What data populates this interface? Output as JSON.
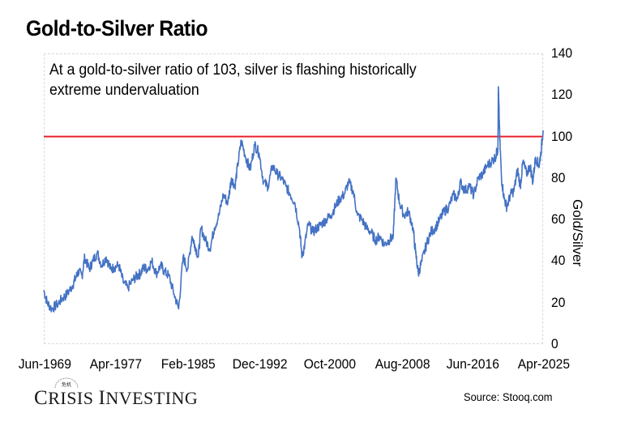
{
  "chart_data": {
    "type": "line",
    "title": "Gold-to-Silver Ratio",
    "annotation": "At a gold-to-silver ratio of 103, silver is flashing historically extreme undervaluation",
    "xlabel": "",
    "ylabel": "Gold/Silver",
    "ylim": [
      0,
      140
    ],
    "yticks": [
      "0",
      "20",
      "40",
      "60",
      "80",
      "100",
      "120",
      "140"
    ],
    "y_axis_position": "right",
    "xlim": [
      1969.42,
      2025.25
    ],
    "xticks": [
      "Jun-1969",
      "Apr-1977",
      "Feb-1985",
      "Dec-1992",
      "Oct-2000",
      "Aug-2008",
      "Jun-2016",
      "Apr-2025"
    ],
    "grid": false,
    "legend": "none",
    "reference_line": {
      "value": 100,
      "color": "#e8212a",
      "label": ""
    },
    "series": [
      {
        "name": "Gold/Silver",
        "color": "#4472c4",
        "x": [
          1969.42,
          1969.8,
          1970.3,
          1970.9,
          1971.5,
          1972.0,
          1972.6,
          1973.0,
          1973.3,
          1973.7,
          1974.0,
          1974.5,
          1974.9,
          1975.4,
          1975.9,
          1976.4,
          1976.9,
          1977.3,
          1977.8,
          1978.3,
          1978.8,
          1979.4,
          1979.9,
          1980.2,
          1980.6,
          1981.0,
          1981.5,
          1982.0,
          1982.5,
          1982.9,
          1983.4,
          1984.0,
          1984.5,
          1985.0,
          1985.5,
          1986.0,
          1986.3,
          1986.7,
          1987.0,
          1987.5,
          1988.0,
          1988.5,
          1989.0,
          1989.5,
          1990.0,
          1990.4,
          1990.8,
          1991.1,
          1991.5,
          1992.0,
          1992.5,
          1993.0,
          1993.5,
          1994.0,
          1994.5,
          1995.0,
          1995.5,
          1996.0,
          1996.5,
          1997.0,
          1997.5,
          1998.0,
          1998.3,
          1998.6,
          1999.0,
          1999.5,
          2000.0,
          2000.5,
          2001.0,
          2001.5,
          2002.0,
          2002.5,
          2003.0,
          2003.5,
          2004.0,
          2004.5,
          2005.0,
          2005.5,
          2006.0,
          2006.5,
          2007.0,
          2007.5,
          2008.0,
          2008.5,
          2008.8,
          2009.2,
          2009.7,
          2010.2,
          2010.7,
          2011.0,
          2011.3,
          2011.7,
          2012.2,
          2012.7,
          2013.2,
          2013.7,
          2014.2,
          2014.7,
          2015.2,
          2015.7,
          2016.0,
          2016.5,
          2017.0,
          2017.5,
          2018.0,
          2018.5,
          2019.0,
          2019.5,
          2019.9,
          2020.2,
          2020.25,
          2020.4,
          2020.6,
          2020.9,
          2021.2,
          2021.6,
          2022.0,
          2022.4,
          2022.7,
          2023.0,
          2023.4,
          2023.8,
          2024.1,
          2024.4,
          2024.8,
          2025.0,
          2025.25
        ],
        "values": [
          26,
          20,
          17,
          19,
          22,
          24,
          28,
          32,
          35,
          33,
          42,
          36,
          40,
          44,
          38,
          42,
          36,
          37,
          38,
          30,
          27,
          31,
          33,
          34,
          37,
          36,
          40,
          34,
          38,
          35,
          33,
          24,
          17,
          42,
          36,
          52,
          48,
          42,
          56,
          50,
          46,
          56,
          62,
          72,
          68,
          80,
          76,
          86,
          98,
          90,
          84,
          96,
          92,
          78,
          76,
          86,
          82,
          80,
          76,
          72,
          68,
          56,
          42,
          48,
          58,
          54,
          56,
          58,
          60,
          62,
          66,
          70,
          72,
          78,
          74,
          62,
          60,
          56,
          54,
          50,
          52,
          48,
          50,
          52,
          80,
          68,
          62,
          64,
          56,
          44,
          34,
          40,
          48,
          54,
          56,
          60,
          64,
          66,
          72,
          70,
          78,
          74,
          76,
          72,
          80,
          82,
          86,
          88,
          90,
          94,
          124,
          100,
          80,
          70,
          66,
          72,
          74,
          84,
          76,
          88,
          82,
          86,
          78,
          90,
          86,
          92,
          103
        ]
      }
    ]
  },
  "footer": {
    "logo_text": "Crisis Investing",
    "source": "Source: Stooq.com"
  }
}
